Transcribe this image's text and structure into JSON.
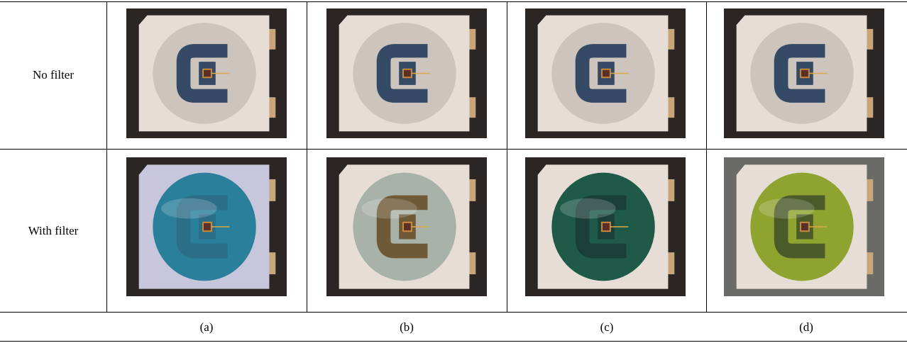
{
  "rows": [
    {
      "label": "No filter"
    },
    {
      "label": "With filter"
    }
  ],
  "captions": [
    "(a)",
    "(b)",
    "(c)",
    "(d)"
  ]
}
